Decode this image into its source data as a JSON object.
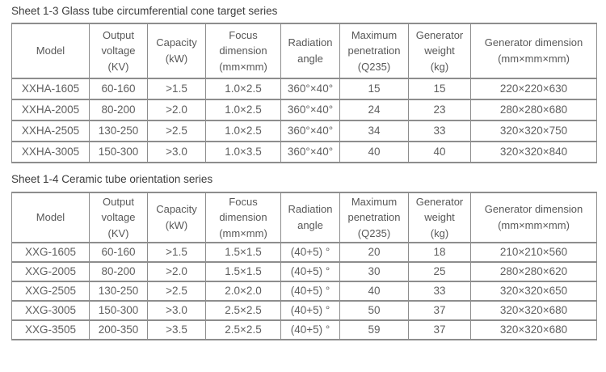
{
  "page": {
    "background_color": "#ffffff",
    "table_border_color": "#8d8d8d",
    "cell_text_color": "#5f5f5f",
    "title_text_color": "#3d3d3d"
  },
  "tables": [
    {
      "title": "Sheet 1-3 Glass tube circumferential cone target series",
      "headers": [
        "Model",
        "Output\nvoltage\n(KV)",
        "Capacity\n(kW)",
        "Focus\ndimension\n(mm×mm)",
        "Radiation\nangle",
        "Maximum\npenetration\n(Q235)",
        "Generator\nweight\n(kg)",
        "Generator dimension\n(mm×mm×mm)"
      ],
      "rows": [
        [
          "XXHA-1605",
          "60-160",
          ">1.5",
          "1.0×2.5",
          "360°×40°",
          "15",
          "15",
          "220×220×630"
        ],
        [
          "XXHA-2005",
          "80-200",
          ">2.0",
          "1.0×2.5",
          "360°×40°",
          "24",
          "23",
          "280×280×680"
        ],
        [
          "XXHA-2505",
          "130-250",
          ">2.5",
          "1.0×2.5",
          "360°×40°",
          "34",
          "33",
          "320×320×750"
        ],
        [
          "XXHA-3005",
          "150-300",
          ">3.0",
          "1.0×3.5",
          "360°×40°",
          "40",
          "40",
          "320×320×840"
        ]
      ]
    },
    {
      "title": "Sheet 1-4 Ceramic tube orientation series",
      "headers": [
        "Model",
        "Output\nvoltage\n(KV)",
        "Capacity\n(kW)",
        "Focus\ndimension\n(mm×mm)",
        "Radiation\nangle",
        "Maximum\npenetration\n(Q235)",
        "Generator\nweight\n(kg)",
        "Generator dimension\n(mm×mm×mm)"
      ],
      "rows": [
        [
          "XXG-1605",
          "60-160",
          ">1.5",
          "1.5×1.5",
          "(40+5) °",
          "20",
          "18",
          "210×210×560"
        ],
        [
          "XXG-2005",
          "80-200",
          ">2.0",
          "1.5×1.5",
          "(40+5) °",
          "30",
          "25",
          "280×280×620"
        ],
        [
          "XXG-2505",
          "130-250",
          ">2.5",
          "2.0×2.0",
          "(40+5) °",
          "40",
          "33",
          "320×320×650"
        ],
        [
          "XXG-3005",
          "150-300",
          ">3.0",
          "2.5×2.5",
          "(40+5) °",
          "50",
          "37",
          "320×320×680"
        ],
        [
          "XXG-3505",
          "200-350",
          ">3.5",
          "2.5×2.5",
          "(40+5) °",
          "59",
          "37",
          "320×320×680"
        ]
      ]
    }
  ]
}
